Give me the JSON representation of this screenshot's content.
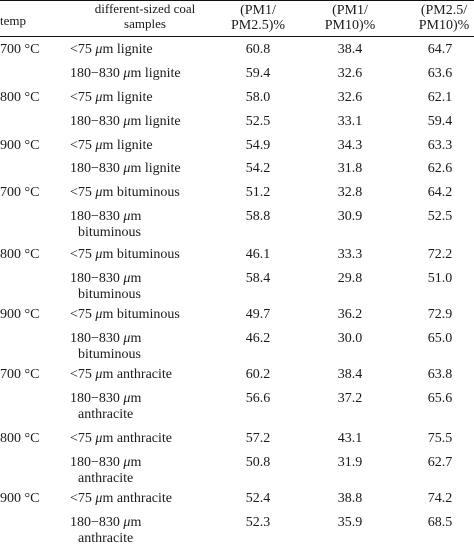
{
  "header": {
    "temp": "temp",
    "samples_line1": "different-sized coal",
    "samples_line2": "samples",
    "col1_line1": "(PM1/",
    "col1_line2": "PM2.5)%",
    "col2_line1": "(PM1/",
    "col2_line2": "PM10)%",
    "col3_line1": "(PM2.5/",
    "col3_line2": "PM10)%"
  },
  "rows": [
    {
      "temp": "700 °C",
      "sample_a": "<75 ",
      "mu": "μ",
      "sample_b": "m lignite",
      "sample_cont": "",
      "v1": "60.8",
      "v2": "38.4",
      "v3": "64.7"
    },
    {
      "temp": "",
      "sample_a": "180−830 ",
      "mu": "μ",
      "sample_b": "m lignite",
      "sample_cont": "",
      "v1": "59.4",
      "v2": "32.6",
      "v3": "63.6"
    },
    {
      "temp": "800 °C",
      "sample_a": "<75 ",
      "mu": "μ",
      "sample_b": "m lignite",
      "sample_cont": "",
      "v1": "58.0",
      "v2": "32.6",
      "v3": "62.1"
    },
    {
      "temp": "",
      "sample_a": "180−830 ",
      "mu": "μ",
      "sample_b": "m lignite",
      "sample_cont": "",
      "v1": "52.5",
      "v2": "33.1",
      "v3": "59.4"
    },
    {
      "temp": "900 °C",
      "sample_a": "<75 ",
      "mu": "μ",
      "sample_b": "m lignite",
      "sample_cont": "",
      "v1": "54.9",
      "v2": "34.3",
      "v3": "63.3"
    },
    {
      "temp": "",
      "sample_a": "180−830 ",
      "mu": "μ",
      "sample_b": "m lignite",
      "sample_cont": "",
      "v1": "54.2",
      "v2": "31.8",
      "v3": "62.6"
    },
    {
      "temp": "700 °C",
      "sample_a": "<75 ",
      "mu": "μ",
      "sample_b": "m bituminous",
      "sample_cont": "",
      "v1": "51.2",
      "v2": "32.8",
      "v3": "64.2"
    },
    {
      "temp": "",
      "sample_a": "180−830 ",
      "mu": "μ",
      "sample_b": "m",
      "sample_cont": "bituminous",
      "v1": "58.8",
      "v2": "30.9",
      "v3": "52.5"
    },
    {
      "temp": "800 °C",
      "sample_a": "<75 ",
      "mu": "μ",
      "sample_b": "m bituminous",
      "sample_cont": "",
      "v1": "46.1",
      "v2": "33.3",
      "v3": "72.2"
    },
    {
      "temp": "",
      "sample_a": "180−830 ",
      "mu": "μ",
      "sample_b": "m",
      "sample_cont": "bituminous",
      "v1": "58.4",
      "v2": "29.8",
      "v3": "51.0"
    },
    {
      "temp": "900 °C",
      "sample_a": "<75 ",
      "mu": "μ",
      "sample_b": "m bituminous",
      "sample_cont": "",
      "v1": "49.7",
      "v2": "36.2",
      "v3": "72.9"
    },
    {
      "temp": "",
      "sample_a": "180−830 ",
      "mu": "μ",
      "sample_b": "m",
      "sample_cont": "bituminous",
      "v1": "46.2",
      "v2": "30.0",
      "v3": "65.0"
    },
    {
      "temp": "700 °C",
      "sample_a": "<75 ",
      "mu": "μ",
      "sample_b": "m anthracite",
      "sample_cont": "",
      "v1": "60.2",
      "v2": "38.4",
      "v3": "63.8"
    },
    {
      "temp": "",
      "sample_a": "180−830 ",
      "mu": "μ",
      "sample_b": "m",
      "sample_cont": "anthracite",
      "v1": "56.6",
      "v2": "37.2",
      "v3": "65.6"
    },
    {
      "temp": "800 °C",
      "sample_a": "<75 ",
      "mu": "μ",
      "sample_b": "m anthracite",
      "sample_cont": "",
      "v1": "57.2",
      "v2": "43.1",
      "v3": "75.5"
    },
    {
      "temp": "",
      "sample_a": "180−830 ",
      "mu": "μ",
      "sample_b": "m",
      "sample_cont": "anthracite",
      "v1": "50.8",
      "v2": "31.9",
      "v3": "62.7"
    },
    {
      "temp": "900 °C",
      "sample_a": "<75 ",
      "mu": "μ",
      "sample_b": "m anthracite",
      "sample_cont": "",
      "v1": "52.4",
      "v2": "38.8",
      "v3": "74.2"
    },
    {
      "temp": "",
      "sample_a": "180−830 ",
      "mu": "μ",
      "sample_b": "m",
      "sample_cont": "anthracite",
      "v1": "52.3",
      "v2": "35.9",
      "v3": "68.5"
    }
  ]
}
